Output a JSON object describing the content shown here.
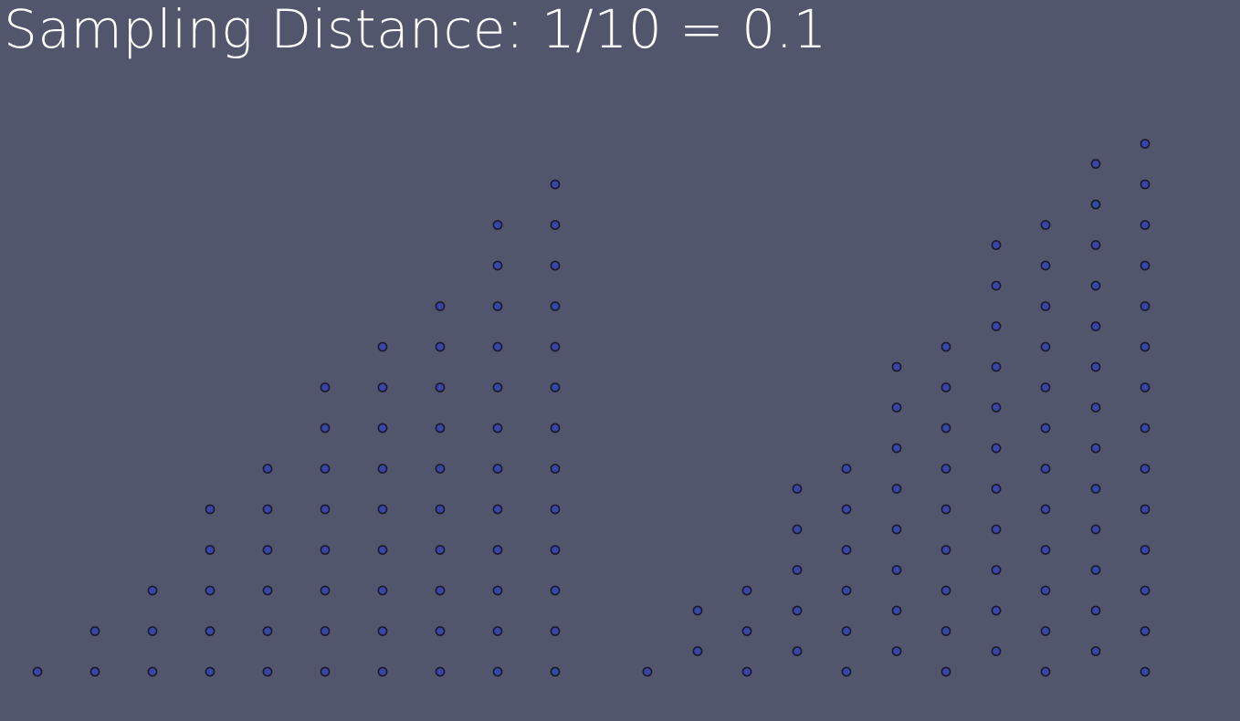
{
  "title": "Sampling Distance: 1/10 = 0.1",
  "colors": {
    "background": "#52566c",
    "title": "#ffffff",
    "point_fill": "#3a45a8",
    "point_stroke": "#1a1a2e"
  },
  "point_grids": [
    {
      "name": "left-staircase",
      "columns": 10,
      "column_heights": [
        1,
        2,
        3,
        5,
        6,
        8,
        9,
        10,
        12,
        13
      ]
    },
    {
      "name": "right-staircase",
      "columns": 11,
      "column_heights": [
        1,
        2,
        3,
        5,
        6,
        8,
        9,
        11,
        12,
        13,
        14
      ]
    }
  ]
}
